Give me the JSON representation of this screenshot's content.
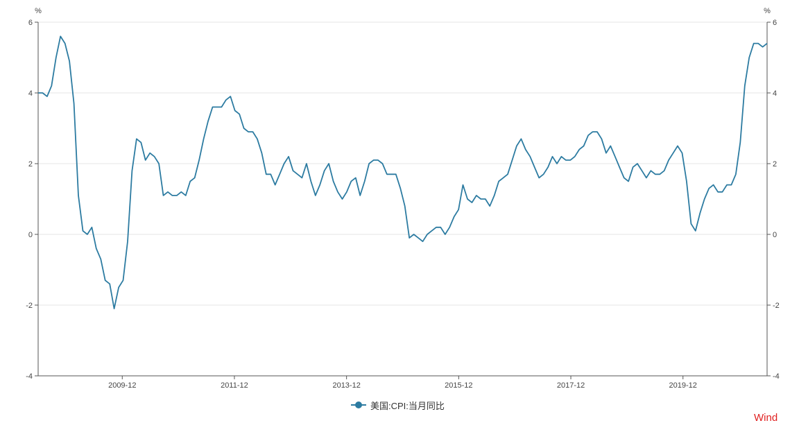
{
  "colors": {
    "series": "#2c7ba1",
    "watermark": "#e02020",
    "grid": "#e4e4e4",
    "axis": "#555555"
  },
  "watermark": "Wind",
  "chart_data": {
    "type": "line",
    "title": "",
    "xlabel": "",
    "ylabel_left": "%",
    "ylabel_right": "%",
    "ylim": [
      -4,
      6
    ],
    "yticks": [
      6,
      4,
      2,
      0,
      -2,
      -4
    ],
    "grid": true,
    "legend_position": "bottom",
    "x_start": "2008-06",
    "x_end": "2021-06",
    "x_tick_labels": [
      "2009-12",
      "2011-12",
      "2013-12",
      "2015-12",
      "2017-12",
      "2019-12"
    ],
    "series": [
      {
        "name": "美国:CPI:当月同比",
        "color": "#2c7ba1",
        "values": [
          4.0,
          4.0,
          3.9,
          4.2,
          5.0,
          5.6,
          5.4,
          4.9,
          3.7,
          1.1,
          0.1,
          0.0,
          0.2,
          -0.4,
          -0.7,
          -1.3,
          -1.4,
          -2.1,
          -1.5,
          -1.3,
          -0.2,
          1.8,
          2.7,
          2.6,
          2.1,
          2.3,
          2.2,
          2.0,
          1.1,
          1.2,
          1.1,
          1.1,
          1.2,
          1.1,
          1.5,
          1.6,
          2.1,
          2.7,
          3.2,
          3.6,
          3.6,
          3.6,
          3.8,
          3.9,
          3.5,
          3.4,
          3.0,
          2.9,
          2.9,
          2.7,
          2.3,
          1.7,
          1.7,
          1.4,
          1.7,
          2.0,
          2.2,
          1.8,
          1.7,
          1.6,
          2.0,
          1.5,
          1.1,
          1.4,
          1.8,
          2.0,
          1.5,
          1.2,
          1.0,
          1.2,
          1.5,
          1.6,
          1.1,
          1.5,
          2.0,
          2.1,
          2.1,
          2.0,
          1.7,
          1.7,
          1.7,
          1.3,
          0.8,
          -0.1,
          0.0,
          -0.1,
          -0.2,
          0.0,
          0.1,
          0.2,
          0.2,
          0.0,
          0.2,
          0.5,
          0.7,
          1.4,
          1.0,
          0.9,
          1.1,
          1.0,
          1.0,
          0.8,
          1.1,
          1.5,
          1.6,
          1.7,
          2.1,
          2.5,
          2.7,
          2.4,
          2.2,
          1.9,
          1.6,
          1.7,
          1.9,
          2.2,
          2.0,
          2.2,
          2.1,
          2.1,
          2.2,
          2.4,
          2.5,
          2.8,
          2.9,
          2.9,
          2.7,
          2.3,
          2.5,
          2.2,
          1.9,
          1.6,
          1.5,
          1.9,
          2.0,
          1.8,
          1.6,
          1.8,
          1.7,
          1.7,
          1.8,
          2.1,
          2.3,
          2.5,
          2.3,
          1.5,
          0.3,
          0.1,
          0.6,
          1.0,
          1.3,
          1.4,
          1.2,
          1.2,
          1.4,
          1.4,
          1.7,
          2.6,
          4.2,
          5.0,
          5.4,
          5.4,
          5.3,
          5.4
        ]
      }
    ]
  }
}
